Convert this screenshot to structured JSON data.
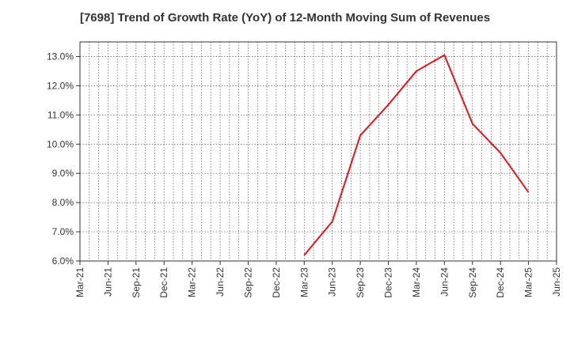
{
  "chart_data": {
    "type": "line",
    "title": "[7698]  Trend of Growth Rate (YoY) of 12-Month Moving Sum of Revenues",
    "xlabel": "",
    "ylabel": "",
    "x_ticks": [
      "Mar-21",
      "Jun-21",
      "Sep-21",
      "Dec-21",
      "Mar-22",
      "Jun-22",
      "Sep-22",
      "Dec-22",
      "Mar-23",
      "Jun-23",
      "Sep-23",
      "Dec-23",
      "Mar-24",
      "Jun-24",
      "Sep-24",
      "Dec-24",
      "Mar-25",
      "Jun-25"
    ],
    "y_ticks": [
      "6.0%",
      "7.0%",
      "8.0%",
      "9.0%",
      "10.0%",
      "11.0%",
      "12.0%",
      "13.0%"
    ],
    "ylim": [
      6.0,
      13.5
    ],
    "grid": true,
    "series": [
      {
        "color": "#e8141a",
        "x": [
          "Mar-23",
          "Jun-23",
          "Sep-23",
          "Dec-23",
          "Mar-24",
          "Jun-24",
          "Sep-24",
          "Dec-24",
          "Mar-25"
        ],
        "values": [
          6.2,
          7.35,
          10.3,
          11.35,
          12.5,
          13.05,
          10.7,
          9.7,
          8.35
        ]
      }
    ]
  }
}
